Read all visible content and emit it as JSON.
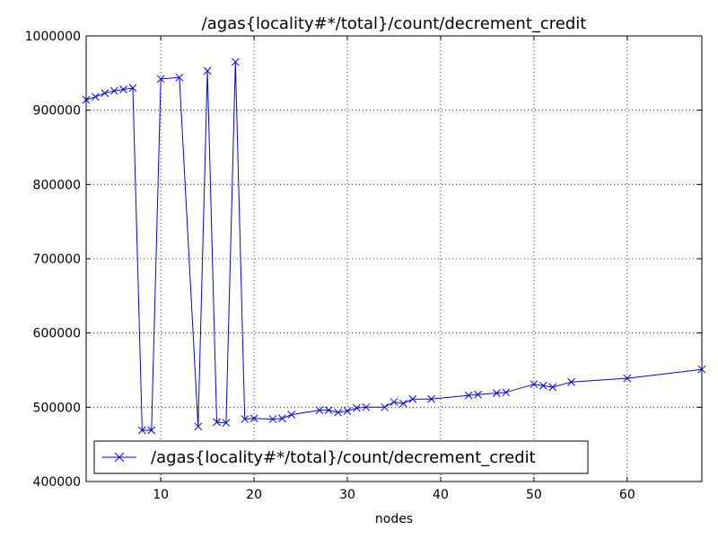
{
  "chart_data": {
    "type": "line",
    "title": "/agas{locality#*/total}/count/decrement_credit",
    "xlabel": "nodes",
    "ylabel": "",
    "xlim": [
      2,
      68
    ],
    "ylim": [
      400000,
      1000000
    ],
    "x_ticks": [
      "10",
      "20",
      "30",
      "40",
      "50",
      "60"
    ],
    "y_ticks": [
      "400000",
      "500000",
      "600000",
      "700000",
      "800000",
      "900000",
      "1000000"
    ],
    "grid": true,
    "legend_position": "lower-left",
    "marker": "x",
    "color": "#0000ff",
    "series": [
      {
        "name": "/agas{locality#*/total}/count/decrement_credit",
        "x": [
          2,
          3,
          4,
          5,
          6,
          7,
          8,
          9,
          10,
          12,
          14,
          15,
          16,
          17,
          18,
          19,
          20,
          22,
          23,
          24,
          27,
          28,
          29,
          30,
          31,
          32,
          34,
          35,
          36,
          37,
          39,
          43,
          44,
          46,
          47,
          50,
          51,
          52,
          54,
          60,
          68
        ],
        "y": [
          914000,
          918000,
          923000,
          926000,
          928000,
          930000,
          469000,
          469000,
          942000,
          944000,
          474000,
          953000,
          480000,
          479000,
          965000,
          484000,
          485000,
          484000,
          485000,
          490000,
          496000,
          496000,
          493000,
          495000,
          499000,
          500000,
          500000,
          507000,
          505000,
          511000,
          511000,
          516000,
          517000,
          519000,
          520000,
          531000,
          529000,
          527000,
          534000,
          539000,
          551000
        ]
      }
    ]
  }
}
